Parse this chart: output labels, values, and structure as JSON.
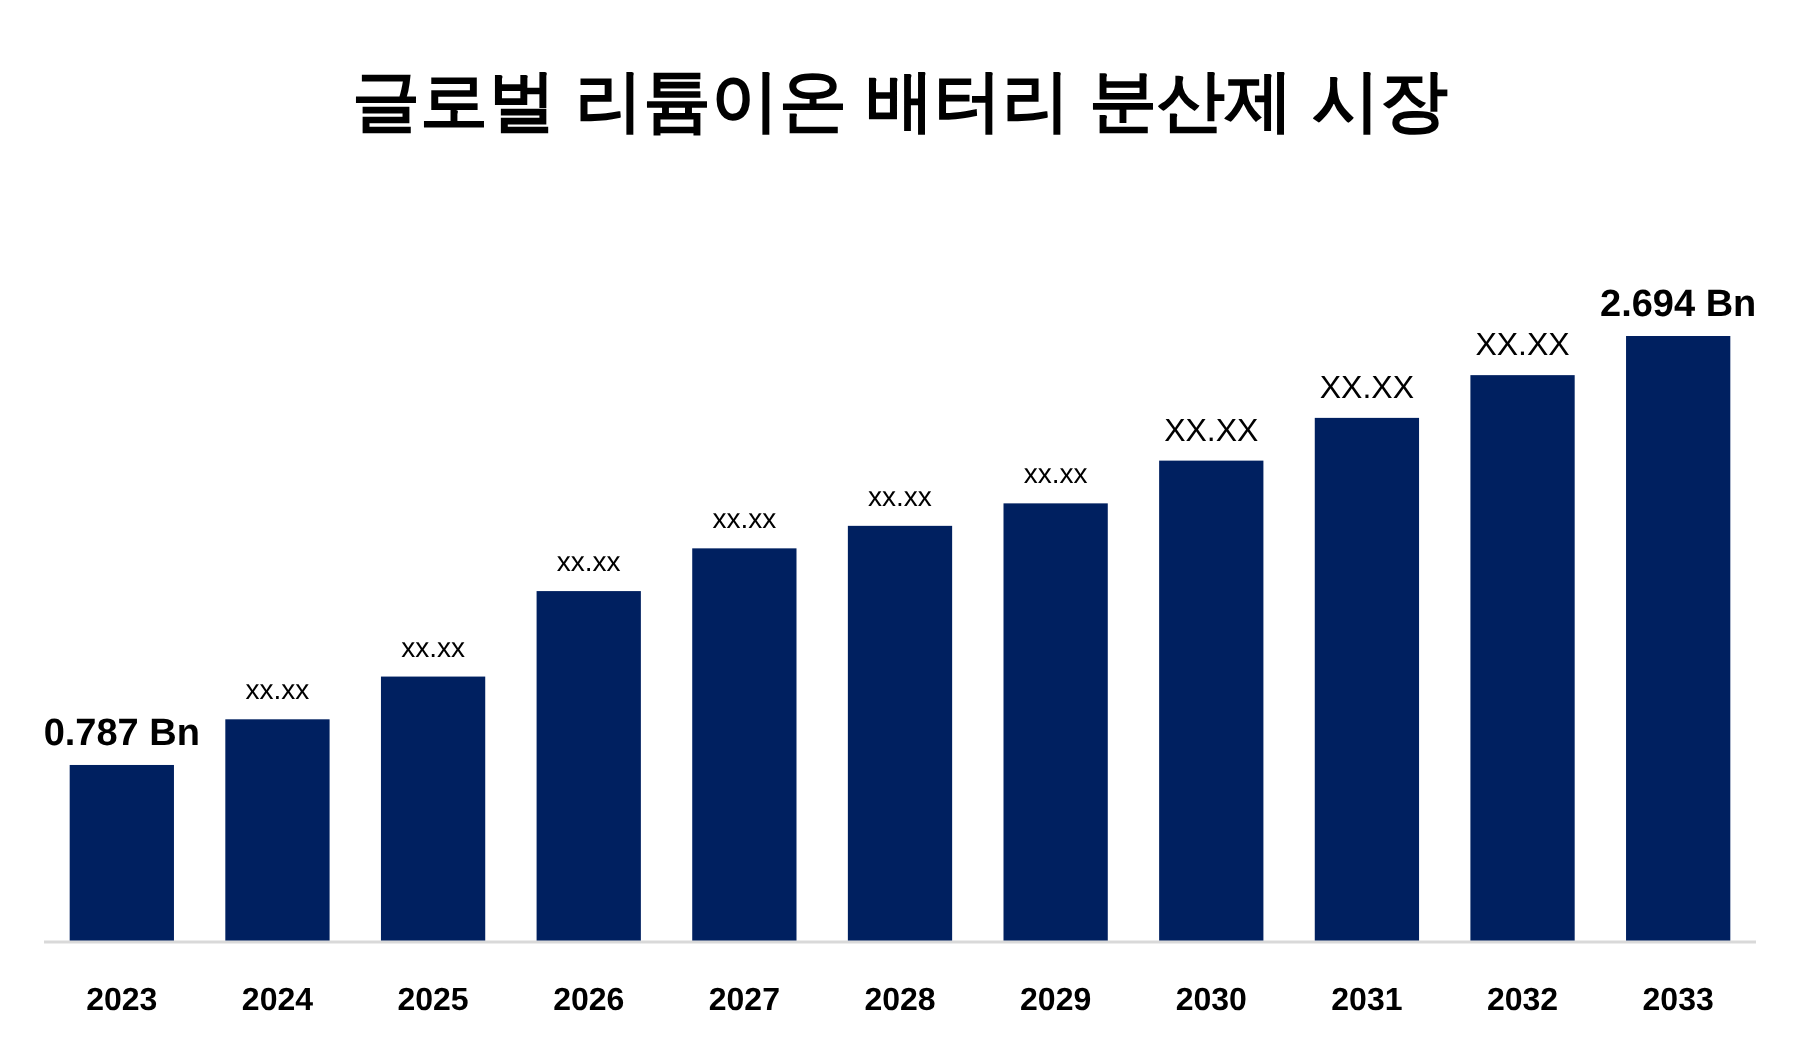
{
  "chart_data": {
    "type": "bar",
    "title": "글로벌 리튬이온 배터리 분산제 시장",
    "categories": [
      "2023",
      "2024",
      "2025",
      "2026",
      "2027",
      "2028",
      "2029",
      "2030",
      "2031",
      "2032",
      "2033"
    ],
    "series": [
      {
        "color": "#002060",
        "values": [
          0.787,
          0.99,
          1.18,
          1.56,
          1.75,
          1.85,
          1.95,
          2.14,
          2.33,
          2.52,
          2.694
        ],
        "value_labels": [
          "0.787 Bn",
          "xx.xx",
          "xx.xx",
          "xx.xx",
          "xx.xx",
          "xx.xx",
          "xx.xx",
          "XX.XX",
          "XX.XX",
          "XX.XX",
          "2.694 Bn"
        ]
      }
    ]
  }
}
